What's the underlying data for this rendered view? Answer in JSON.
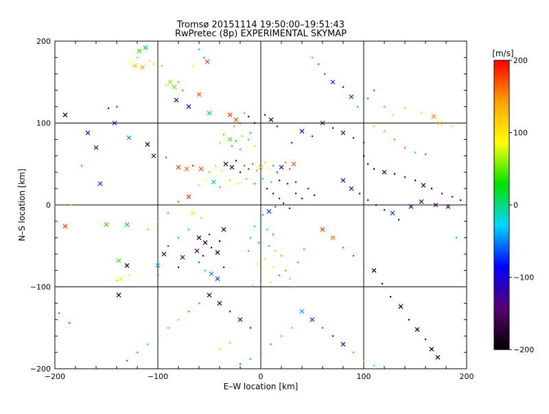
{
  "chart_data": {
    "type": "scatter",
    "title": "Tromsø 20151114 19:50:00–19:51:43",
    "subtitle": "RwPretec (8p) EXPERIMENTAL SKYMAP",
    "xlabel": "E–W location [km]",
    "ylabel": "N–S location [km]",
    "xlim": [
      -200,
      200
    ],
    "ylim": [
      -200,
      200
    ],
    "xticks": [
      -200,
      -100,
      0,
      100,
      200
    ],
    "yticks": [
      -200,
      -100,
      0,
      100,
      200
    ],
    "grid": true,
    "colorbar": {
      "label": "[m/s]",
      "range": [
        -200,
        200
      ],
      "ticks": [
        200,
        100,
        0,
        -100,
        -200
      ],
      "colormap": [
        "#000000",
        "#5a0070",
        "#0000ff",
        "#00d4ff",
        "#00e000",
        "#ffff00",
        "#ffa000",
        "#ff0000"
      ]
    },
    "points": [
      [
        -118,
        188,
        40,
        "x"
      ],
      [
        -112,
        192,
        20,
        "x"
      ],
      [
        -120,
        180,
        60,
        "."
      ],
      [
        -108,
        176,
        100,
        "."
      ],
      [
        -122,
        170,
        120,
        "x"
      ],
      [
        -115,
        168,
        140,
        "x"
      ],
      [
        -104,
        172,
        110,
        "."
      ],
      [
        -96,
        170,
        130,
        "."
      ],
      [
        -126,
        175,
        90,
        "."
      ],
      [
        -88,
        150,
        60,
        "x"
      ],
      [
        -84,
        144,
        50,
        "x"
      ],
      [
        -92,
        146,
        70,
        "."
      ],
      [
        -80,
        150,
        40,
        "."
      ],
      [
        -76,
        140,
        30,
        "."
      ],
      [
        -60,
        190,
        -20,
        "."
      ],
      [
        -55,
        180,
        -40,
        "."
      ],
      [
        -52,
        175,
        180,
        "x"
      ],
      [
        -66,
        170,
        90,
        "."
      ],
      [
        -82,
        128,
        -160,
        "x"
      ],
      [
        -70,
        120,
        -90,
        "x"
      ],
      [
        -60,
        135,
        170,
        "x"
      ],
      [
        -50,
        112,
        10,
        "x"
      ],
      [
        -140,
        120,
        -70,
        "."
      ],
      [
        -148,
        118,
        -90,
        "."
      ],
      [
        -142,
        100,
        -100,
        "x"
      ],
      [
        -128,
        82,
        -50,
        "x"
      ],
      [
        -110,
        74,
        -200,
        "x"
      ],
      [
        -104,
        60,
        -140,
        "x"
      ],
      [
        -92,
        58,
        -50,
        "."
      ],
      [
        -160,
        70,
        -120,
        "x"
      ],
      [
        -168,
        88,
        -110,
        "x"
      ],
      [
        -156,
        26,
        -70,
        "x"
      ],
      [
        -174,
        48,
        10,
        "."
      ],
      [
        -190,
        110,
        -200,
        "x"
      ],
      [
        -184,
        0,
        70,
        "."
      ],
      [
        -30,
        110,
        180,
        "x"
      ],
      [
        -24,
        104,
        170,
        "x"
      ],
      [
        -20,
        100,
        190,
        "."
      ],
      [
        -16,
        112,
        160,
        "."
      ],
      [
        -26,
        96,
        150,
        "."
      ],
      [
        -12,
        108,
        -200,
        "."
      ],
      [
        -6,
        100,
        -190,
        "."
      ],
      [
        4,
        110,
        -170,
        "."
      ],
      [
        10,
        104,
        -180,
        "x"
      ],
      [
        16,
        96,
        -160,
        "."
      ],
      [
        -36,
        86,
        40,
        "."
      ],
      [
        -30,
        80,
        50,
        "x"
      ],
      [
        -24,
        78,
        30,
        "."
      ],
      [
        -18,
        84,
        60,
        "."
      ],
      [
        -12,
        80,
        40,
        "."
      ],
      [
        -6,
        72,
        70,
        "."
      ],
      [
        -28,
        72,
        20,
        "."
      ],
      [
        -20,
        68,
        10,
        "."
      ],
      [
        -10,
        88,
        20,
        "."
      ],
      [
        -40,
        76,
        60,
        "."
      ],
      [
        -80,
        46,
        180,
        "x"
      ],
      [
        -72,
        44,
        160,
        "x"
      ],
      [
        -66,
        48,
        190,
        "."
      ],
      [
        -58,
        44,
        170,
        "x"
      ],
      [
        -50,
        40,
        140,
        "."
      ],
      [
        -44,
        48,
        120,
        "."
      ],
      [
        -38,
        42,
        100,
        "."
      ],
      [
        -34,
        50,
        -200,
        "x"
      ],
      [
        -28,
        46,
        -180,
        "x"
      ],
      [
        -24,
        54,
        -190,
        "."
      ],
      [
        -20,
        40,
        -160,
        "."
      ],
      [
        -16,
        48,
        180,
        "."
      ],
      [
        -12,
        44,
        200,
        "."
      ],
      [
        -8,
        50,
        170,
        "."
      ],
      [
        -4,
        42,
        150,
        "."
      ],
      [
        0,
        46,
        130,
        "x"
      ],
      [
        4,
        52,
        110,
        "."
      ],
      [
        8,
        44,
        90,
        "."
      ],
      [
        12,
        48,
        -40,
        "."
      ],
      [
        16,
        40,
        -60,
        "."
      ],
      [
        20,
        46,
        -80,
        "x"
      ],
      [
        24,
        52,
        160,
        "."
      ],
      [
        28,
        44,
        180,
        "."
      ],
      [
        32,
        50,
        170,
        "x"
      ],
      [
        -54,
        30,
        90,
        "."
      ],
      [
        -60,
        24,
        110,
        "."
      ],
      [
        -46,
        28,
        -10,
        "x"
      ],
      [
        -40,
        22,
        40,
        "."
      ],
      [
        -30,
        30,
        60,
        "."
      ],
      [
        -22,
        26,
        80,
        "."
      ],
      [
        -14,
        32,
        50,
        "."
      ],
      [
        -6,
        26,
        30,
        "."
      ],
      [
        2,
        32,
        20,
        "."
      ],
      [
        10,
        28,
        -30,
        "."
      ],
      [
        18,
        30,
        -100,
        "."
      ],
      [
        26,
        26,
        -120,
        "."
      ],
      [
        34,
        28,
        -140,
        "."
      ],
      [
        6,
        20,
        -110,
        "."
      ],
      [
        12,
        14,
        -100,
        "."
      ],
      [
        18,
        8,
        -120,
        "."
      ],
      [
        22,
        2,
        -90,
        "."
      ],
      [
        28,
        -4,
        -80,
        "."
      ],
      [
        14,
        -2,
        -60,
        "."
      ],
      [
        8,
        -8,
        -70,
        "x"
      ],
      [
        2,
        -12,
        -50,
        "."
      ],
      [
        34,
        14,
        -150,
        "."
      ],
      [
        40,
        8,
        -160,
        "."
      ],
      [
        46,
        20,
        -130,
        "."
      ],
      [
        52,
        12,
        -170,
        "."
      ],
      [
        0,
        -20,
        -10,
        "."
      ],
      [
        -6,
        -26,
        10,
        "."
      ],
      [
        6,
        -30,
        -20,
        "."
      ],
      [
        12,
        -36,
        30,
        "."
      ],
      [
        -10,
        -40,
        0,
        "."
      ],
      [
        -2,
        -46,
        20,
        "."
      ],
      [
        8,
        -50,
        40,
        "."
      ],
      [
        14,
        -56,
        60,
        "."
      ],
      [
        -12,
        -56,
        -30,
        "."
      ],
      [
        20,
        -62,
        50,
        "."
      ],
      [
        4,
        -66,
        70,
        "."
      ],
      [
        -4,
        -72,
        90,
        "."
      ],
      [
        12,
        -76,
        80,
        "."
      ],
      [
        24,
        -80,
        40,
        "."
      ],
      [
        18,
        -86,
        20,
        "."
      ],
      [
        28,
        -90,
        60,
        "."
      ],
      [
        10,
        -94,
        100,
        "."
      ],
      [
        -8,
        -98,
        120,
        "."
      ],
      [
        32,
        -100,
        -20,
        "."
      ],
      [
        36,
        -70,
        10,
        "."
      ],
      [
        42,
        -54,
        -10,
        "."
      ],
      [
        -60,
        -40,
        -200,
        "x"
      ],
      [
        -54,
        -46,
        -190,
        "x"
      ],
      [
        -48,
        -52,
        -180,
        "."
      ],
      [
        -42,
        -58,
        -200,
        "x"
      ],
      [
        -56,
        -62,
        -170,
        "."
      ],
      [
        -50,
        -36,
        -150,
        "."
      ],
      [
        -40,
        -44,
        -200,
        "."
      ],
      [
        -36,
        -30,
        -180,
        "x"
      ],
      [
        -62,
        -56,
        -160,
        "x"
      ],
      [
        -48,
        -84,
        -50,
        "x"
      ],
      [
        -42,
        -90,
        -70,
        "x"
      ],
      [
        -54,
        -80,
        -30,
        "."
      ],
      [
        -60,
        -70,
        -60,
        "."
      ],
      [
        -36,
        -76,
        -80,
        "."
      ],
      [
        -130,
        -24,
        30,
        "x"
      ],
      [
        -150,
        -24,
        40,
        "x"
      ],
      [
        -138,
        -68,
        40,
        "x"
      ],
      [
        -136,
        -90,
        80,
        "x"
      ],
      [
        -128,
        -86,
        100,
        "."
      ],
      [
        -140,
        -92,
        120,
        "."
      ],
      [
        -130,
        -74,
        -200,
        "x"
      ],
      [
        -138,
        -110,
        -200,
        "x"
      ],
      [
        -100,
        -74,
        -40,
        "x"
      ],
      [
        -100,
        -86,
        -60,
        "."
      ],
      [
        -94,
        -60,
        -160,
        "x"
      ],
      [
        -80,
        -76,
        -180,
        "."
      ],
      [
        -76,
        -64,
        -140,
        "x"
      ],
      [
        -190,
        -26,
        180,
        "x"
      ],
      [
        -196,
        -132,
        180,
        "."
      ],
      [
        -186,
        -144,
        190,
        "."
      ],
      [
        -200,
        0,
        140,
        "."
      ],
      [
        50,
        180,
        40,
        "."
      ],
      [
        56,
        172,
        -50,
        "."
      ],
      [
        62,
        160,
        -60,
        "."
      ],
      [
        70,
        150,
        -80,
        "x"
      ],
      [
        80,
        144,
        -100,
        "."
      ],
      [
        88,
        132,
        -70,
        "x"
      ],
      [
        94,
        120,
        -40,
        "."
      ],
      [
        104,
        130,
        -50,
        "."
      ],
      [
        110,
        140,
        -60,
        "."
      ],
      [
        120,
        120,
        -30,
        "."
      ],
      [
        128,
        110,
        120,
        "."
      ],
      [
        140,
        118,
        130,
        "."
      ],
      [
        156,
        112,
        100,
        "."
      ],
      [
        168,
        108,
        150,
        "x"
      ],
      [
        174,
        100,
        120,
        "x"
      ],
      [
        186,
        96,
        110,
        "."
      ],
      [
        110,
        96,
        60,
        "."
      ],
      [
        120,
        90,
        50,
        "."
      ],
      [
        130,
        80,
        160,
        "."
      ],
      [
        140,
        70,
        170,
        "."
      ],
      [
        150,
        64,
        -30,
        "."
      ],
      [
        160,
        62,
        -50,
        "."
      ],
      [
        100,
        60,
        -200,
        "."
      ],
      [
        104,
        50,
        -180,
        "."
      ],
      [
        110,
        44,
        -200,
        "."
      ],
      [
        120,
        40,
        -170,
        "x"
      ],
      [
        130,
        38,
        -190,
        "."
      ],
      [
        140,
        34,
        -160,
        "."
      ],
      [
        150,
        30,
        -200,
        "."
      ],
      [
        158,
        24,
        -170,
        "x"
      ],
      [
        166,
        20,
        -180,
        "."
      ],
      [
        176,
        14,
        -150,
        "."
      ],
      [
        186,
        10,
        -130,
        "."
      ],
      [
        194,
        6,
        -200,
        "."
      ],
      [
        80,
        30,
        -120,
        "x"
      ],
      [
        88,
        20,
        -130,
        "x"
      ],
      [
        96,
        14,
        -110,
        "."
      ],
      [
        104,
        6,
        -90,
        "."
      ],
      [
        112,
        0,
        -100,
        "."
      ],
      [
        120,
        -6,
        -80,
        "."
      ],
      [
        128,
        -10,
        -70,
        "x"
      ],
      [
        134,
        -18,
        -120,
        "."
      ],
      [
        146,
        -2,
        -140,
        "x"
      ],
      [
        156,
        4,
        -130,
        "x"
      ],
      [
        170,
        0,
        -150,
        "x"
      ],
      [
        182,
        -2,
        -160,
        "x"
      ],
      [
        190,
        -40,
        -40,
        "."
      ],
      [
        60,
        -30,
        180,
        "x"
      ],
      [
        70,
        -40,
        160,
        "x"
      ],
      [
        80,
        -52,
        -40,
        "."
      ],
      [
        90,
        -62,
        -60,
        "."
      ],
      [
        100,
        -72,
        170,
        "."
      ],
      [
        110,
        -80,
        -200,
        "x"
      ],
      [
        118,
        -96,
        -200,
        "."
      ],
      [
        126,
        -112,
        -180,
        "."
      ],
      [
        136,
        -124,
        -200,
        "x"
      ],
      [
        144,
        -140,
        -180,
        "."
      ],
      [
        152,
        -152,
        -200,
        "x"
      ],
      [
        160,
        -164,
        -190,
        "."
      ],
      [
        166,
        -176,
        -200,
        "x"
      ],
      [
        172,
        -186,
        -200,
        "x"
      ],
      [
        40,
        -130,
        -40,
        "x"
      ],
      [
        50,
        -140,
        -70,
        "x"
      ],
      [
        60,
        -150,
        -60,
        "."
      ],
      [
        70,
        -160,
        -100,
        "."
      ],
      [
        80,
        -170,
        -120,
        "x"
      ],
      [
        90,
        -180,
        40,
        "."
      ],
      [
        100,
        -190,
        60,
        "."
      ],
      [
        110,
        -196,
        -20,
        "."
      ],
      [
        30,
        -150,
        -30,
        "."
      ],
      [
        20,
        -160,
        40,
        "."
      ],
      [
        10,
        -170,
        20,
        "."
      ],
      [
        0,
        -180,
        10,
        "."
      ],
      [
        -10,
        -188,
        -40,
        "."
      ],
      [
        -20,
        -194,
        -50,
        "."
      ],
      [
        -30,
        -168,
        60,
        "."
      ],
      [
        -40,
        -176,
        70,
        "."
      ],
      [
        -60,
        -120,
        30,
        "."
      ],
      [
        -70,
        -130,
        20,
        "."
      ],
      [
        -80,
        -140,
        60,
        "."
      ],
      [
        -90,
        -150,
        40,
        "."
      ],
      [
        -100,
        -160,
        -10,
        "."
      ],
      [
        -110,
        -170,
        -20,
        "."
      ],
      [
        -120,
        -180,
        -40,
        "."
      ],
      [
        -130,
        -190,
        -50,
        "."
      ],
      [
        -50,
        -110,
        -180,
        "x"
      ],
      [
        -40,
        -120,
        -170,
        "x"
      ],
      [
        -30,
        -130,
        -160,
        "."
      ],
      [
        -20,
        -140,
        -150,
        "x"
      ],
      [
        -10,
        -150,
        -140,
        "."
      ],
      [
        -70,
        10,
        180,
        "x"
      ],
      [
        -80,
        4,
        170,
        "."
      ],
      [
        -90,
        -10,
        160,
        "."
      ],
      [
        -100,
        -20,
        150,
        "."
      ],
      [
        -110,
        -30,
        140,
        "."
      ],
      [
        -66,
        -10,
        100,
        "x"
      ],
      [
        -58,
        -16,
        120,
        "."
      ],
      [
        -70,
        -30,
        -20,
        "."
      ],
      [
        -80,
        -40,
        -40,
        "."
      ],
      [
        -90,
        -50,
        -60,
        "."
      ],
      [
        60,
        100,
        -150,
        "x"
      ],
      [
        70,
        94,
        -160,
        "."
      ],
      [
        80,
        88,
        -140,
        "x"
      ],
      [
        90,
        82,
        -130,
        "."
      ],
      [
        100,
        76,
        -120,
        "."
      ],
      [
        40,
        90,
        -100,
        "x"
      ],
      [
        50,
        84,
        -90,
        "."
      ],
      [
        30,
        76,
        -80,
        "."
      ]
    ]
  }
}
